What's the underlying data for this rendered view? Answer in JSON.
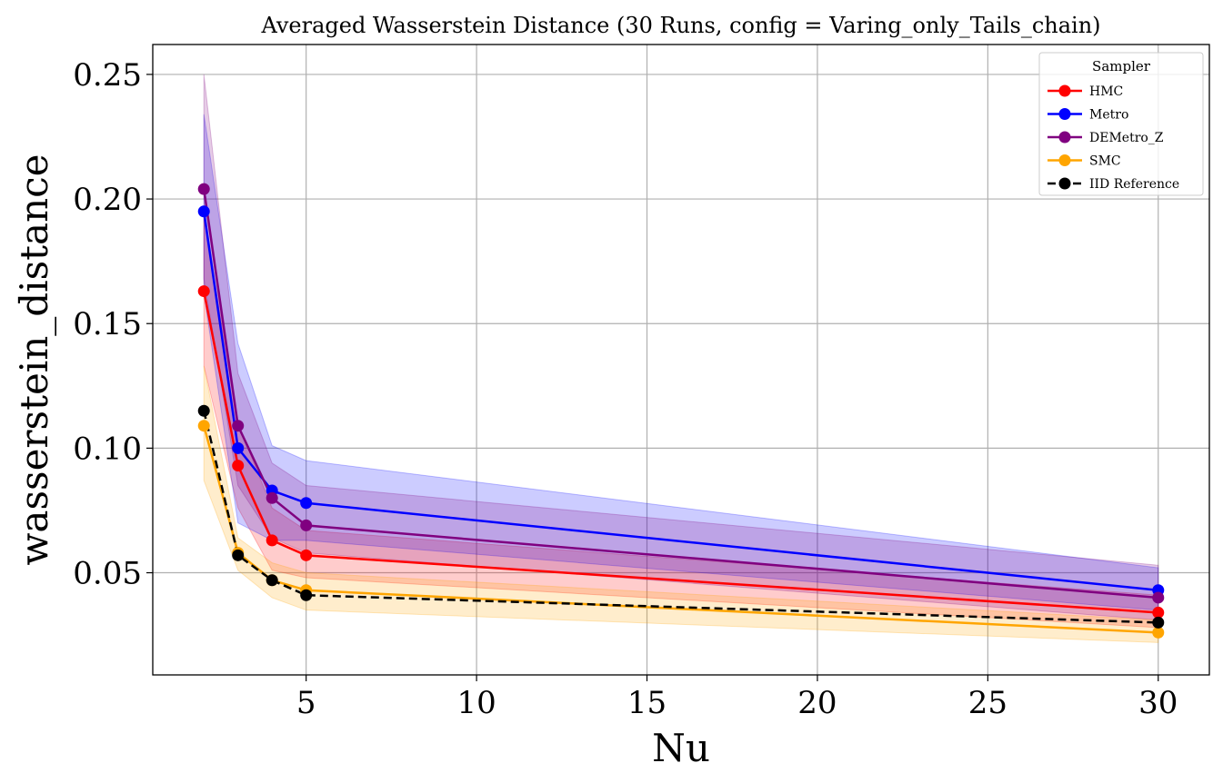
{
  "chart_data": {
    "type": "line",
    "title": "Averaged Wasserstein Distance (30 Runs, config = Varing_only_Tails_chain)",
    "xlabel": "Nu",
    "ylabel": "wasserstein_distance",
    "xlim": [
      0.5,
      31.5
    ],
    "ylim": [
      0.009,
      0.262
    ],
    "xticks": [
      5,
      10,
      15,
      20,
      25,
      30
    ],
    "xtick_labels": [
      "5",
      "10",
      "15",
      "20",
      "25",
      "30"
    ],
    "yticks": [
      0.05,
      0.1,
      0.15,
      0.2,
      0.25
    ],
    "ytick_labels": [
      "0.05",
      "0.10",
      "0.15",
      "0.20",
      "0.25"
    ],
    "grid": true,
    "x": [
      2,
      3,
      4,
      5,
      30
    ],
    "legend": {
      "title": "Sampler",
      "position": "top-right"
    },
    "series": [
      {
        "name": "HMC",
        "color": "#ff0000",
        "dashed": false,
        "values": [
          0.163,
          0.093,
          0.063,
          0.057,
          0.034
        ],
        "lower": [
          0.133,
          0.076,
          0.051,
          0.048,
          0.028
        ],
        "upper": [
          0.194,
          0.11,
          0.076,
          0.067,
          0.041
        ]
      },
      {
        "name": "Metro",
        "color": "#0000ff",
        "dashed": false,
        "values": [
          0.195,
          0.1,
          0.083,
          0.078,
          0.043
        ],
        "lower": [
          0.162,
          0.07,
          0.063,
          0.063,
          0.035
        ],
        "upper": [
          0.234,
          0.142,
          0.101,
          0.095,
          0.052
        ]
      },
      {
        "name": "DEMetro_Z",
        "color": "#800080",
        "dashed": false,
        "values": [
          0.204,
          0.109,
          0.08,
          0.069,
          0.04
        ],
        "lower": [
          0.168,
          0.085,
          0.064,
          0.058,
          0.031
        ],
        "upper": [
          0.25,
          0.13,
          0.094,
          0.085,
          0.053
        ]
      },
      {
        "name": "SMC",
        "color": "#ffa500",
        "dashed": false,
        "values": [
          0.109,
          0.058,
          0.047,
          0.043,
          0.026
        ],
        "lower": [
          0.087,
          0.051,
          0.04,
          0.035,
          0.022
        ],
        "upper": [
          0.133,
          0.064,
          0.054,
          0.05,
          0.031
        ]
      },
      {
        "name": "IID Reference",
        "color": "#000000",
        "dashed": true,
        "values": [
          0.115,
          0.057,
          0.047,
          0.041,
          0.03
        ],
        "lower": null,
        "upper": null
      }
    ]
  }
}
